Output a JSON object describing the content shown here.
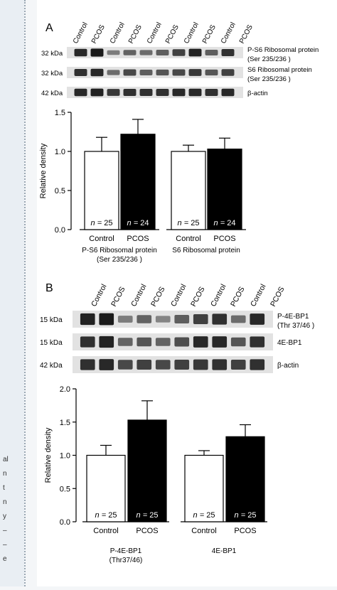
{
  "side_fragments": [
    "al",
    "n",
    "t",
    "n",
    "y",
    "–",
    "–",
    "e"
  ],
  "panel_a": {
    "letter": "A",
    "lane_labels": [
      "Control",
      "PCOS",
      "Control",
      "PCOS",
      "Control",
      "PCOS",
      "Control",
      "PCOS",
      "Control",
      "PCOS"
    ],
    "blot_rows": [
      {
        "kda": "32 kDa",
        "protein_line1": "P-S6 Ribosomal protein",
        "protein_line2": "(Ser 235/236  )",
        "intensity": [
          0.9,
          1.0,
          0.35,
          0.5,
          0.45,
          0.55,
          0.75,
          0.95,
          0.55,
          0.85
        ]
      },
      {
        "kda": "32 kDa",
        "protein_line1": "S6 Ribosomal protein",
        "protein_line2": "(Ser 235/236  )",
        "intensity": [
          0.85,
          0.9,
          0.45,
          0.7,
          0.55,
          0.6,
          0.7,
          0.8,
          0.6,
          0.75
        ]
      },
      {
        "kda": "42 kDa",
        "protein_line1": "β-actin",
        "protein_line2": "",
        "intensity": [
          0.9,
          0.95,
          0.8,
          0.85,
          0.85,
          0.85,
          0.9,
          0.9,
          0.85,
          0.9
        ]
      }
    ]
  },
  "panel_b": {
    "letter": "B",
    "lane_labels": [
      "Control",
      "PCOS",
      "Control",
      "PCOS",
      "Control",
      "PCOS",
      "Control",
      "PCOS",
      "Control",
      "PCOS"
    ],
    "blot_rows": [
      {
        "kda": "15 kDa",
        "protein_line1": "P-4E-BP1",
        "protein_line2": "(Thr 37/46 )",
        "intensity": [
          0.95,
          1.0,
          0.35,
          0.5,
          0.3,
          0.55,
          0.75,
          0.85,
          0.45,
          0.9
        ]
      },
      {
        "kda": "15 kDa",
        "protein_line1": "4E-BP1",
        "protein_line2": "",
        "intensity": [
          0.85,
          0.95,
          0.5,
          0.6,
          0.5,
          0.65,
          0.9,
          0.9,
          0.6,
          0.85
        ]
      },
      {
        "kda": "42 kDa",
        "protein_line1": "β-actin",
        "protein_line2": "",
        "intensity": [
          0.85,
          0.9,
          0.7,
          0.75,
          0.7,
          0.75,
          0.8,
          0.85,
          0.75,
          0.85
        ]
      }
    ]
  },
  "chart_data": [
    {
      "type": "bar",
      "ylabel": "Relative density",
      "ylim": [
        0,
        1.5
      ],
      "yticks": [
        "0.0",
        "0.5",
        "1.0",
        "1.5"
      ],
      "groups": [
        {
          "label_line1": "P-S6 Ribosomal protein",
          "label_line2": "(Ser 235/236  )"
        },
        {
          "label_line1": "S6 Ribosomal protein",
          "label_line2": ""
        }
      ],
      "bars": [
        {
          "category": "Control",
          "value": 1.0,
          "error": 0.18,
          "n": "25",
          "color": "#ffffff"
        },
        {
          "category": "PCOS",
          "value": 1.22,
          "error": 0.19,
          "n": "24",
          "color": "#000000"
        },
        {
          "category": "Control",
          "value": 1.0,
          "error": 0.08,
          "n": "25",
          "color": "#ffffff"
        },
        {
          "category": "PCOS",
          "value": 1.03,
          "error": 0.14,
          "n": "24",
          "color": "#000000"
        }
      ],
      "n_prefix": "n ="
    },
    {
      "type": "bar",
      "ylabel": "Relative density",
      "ylim": [
        0,
        2.0
      ],
      "yticks": [
        "0.0",
        "0.5",
        "1.0",
        "1.5",
        "2.0"
      ],
      "groups": [
        {
          "label_line1": "P-4E-BP1",
          "label_line2": "(Thr37/46)"
        },
        {
          "label_line1": "4E-BP1",
          "label_line2": ""
        }
      ],
      "bars": [
        {
          "category": "Control",
          "value": 1.0,
          "error": 0.15,
          "n": "25",
          "color": "#ffffff"
        },
        {
          "category": "PCOS",
          "value": 1.53,
          "error": 0.29,
          "n": "25",
          "color": "#000000"
        },
        {
          "category": "Control",
          "value": 1.0,
          "error": 0.07,
          "n": "25",
          "color": "#ffffff"
        },
        {
          "category": "PCOS",
          "value": 1.28,
          "error": 0.18,
          "n": "25",
          "color": "#000000"
        }
      ],
      "n_prefix": "n ="
    }
  ]
}
